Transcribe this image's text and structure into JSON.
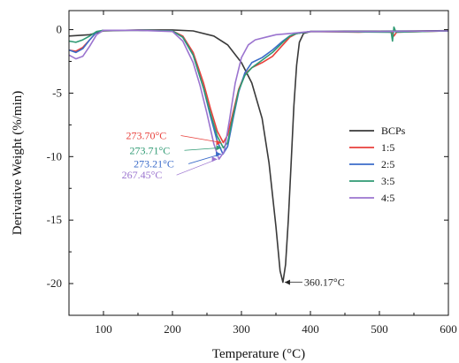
{
  "chart_data": {
    "type": "line",
    "title": "",
    "xlabel": "Temperature (°C)",
    "ylabel": "Derivative Weight (%/min)",
    "xlim": [
      50,
      600
    ],
    "ylim": [
      -22.5,
      1.5
    ],
    "xticks": [
      100,
      200,
      300,
      400,
      500,
      600
    ],
    "yticks": [
      0,
      -5,
      -10,
      -15,
      -20
    ],
    "grid": false,
    "legend_position": "right",
    "series": [
      {
        "name": "BCPs",
        "color": "#3a3a3a",
        "points": [
          [
            50,
            -0.5
          ],
          [
            80,
            -0.4
          ],
          [
            100,
            -0.1
          ],
          [
            150,
            -0.02
          ],
          [
            200,
            -0.02
          ],
          [
            230,
            -0.1
          ],
          [
            260,
            -0.5
          ],
          [
            280,
            -1.2
          ],
          [
            300,
            -2.6
          ],
          [
            315,
            -4.2
          ],
          [
            330,
            -7.0
          ],
          [
            340,
            -10.5
          ],
          [
            350,
            -15.5
          ],
          [
            356,
            -19.0
          ],
          [
            360.17,
            -19.9
          ],
          [
            364,
            -18.5
          ],
          [
            368,
            -15.0
          ],
          [
            372,
            -10.5
          ],
          [
            376,
            -6.0
          ],
          [
            380,
            -2.8
          ],
          [
            384,
            -1.0
          ],
          [
            390,
            -0.3
          ],
          [
            400,
            -0.15
          ],
          [
            450,
            -0.12
          ],
          [
            500,
            -0.12
          ],
          [
            550,
            -0.1
          ],
          [
            600,
            -0.08
          ]
        ]
      },
      {
        "name": "1:5",
        "color": "#e8413c",
        "points": [
          [
            50,
            -1.6
          ],
          [
            60,
            -1.7
          ],
          [
            70,
            -1.4
          ],
          [
            80,
            -0.8
          ],
          [
            90,
            -0.2
          ],
          [
            100,
            -0.05
          ],
          [
            150,
            -0.05
          ],
          [
            200,
            -0.1
          ],
          [
            215,
            -0.5
          ],
          [
            230,
            -1.8
          ],
          [
            245,
            -4.2
          ],
          [
            255,
            -6.2
          ],
          [
            265,
            -8.0
          ],
          [
            273.7,
            -8.9
          ],
          [
            280,
            -8.3
          ],
          [
            288,
            -6.5
          ],
          [
            296,
            -4.7
          ],
          [
            305,
            -3.5
          ],
          [
            315,
            -3.0
          ],
          [
            330,
            -2.6
          ],
          [
            345,
            -2.1
          ],
          [
            360,
            -1.2
          ],
          [
            370,
            -0.6
          ],
          [
            380,
            -0.3
          ],
          [
            400,
            -0.15
          ],
          [
            470,
            -0.2
          ],
          [
            500,
            -0.15
          ],
          [
            518,
            -0.2
          ],
          [
            521,
            -0.5
          ],
          [
            525,
            -0.2
          ],
          [
            600,
            -0.1
          ]
        ]
      },
      {
        "name": "2:5",
        "color": "#3b6cc9",
        "points": [
          [
            50,
            -1.6
          ],
          [
            60,
            -1.8
          ],
          [
            70,
            -1.5
          ],
          [
            80,
            -0.8
          ],
          [
            90,
            -0.2
          ],
          [
            100,
            -0.05
          ],
          [
            150,
            -0.05
          ],
          [
            200,
            -0.1
          ],
          [
            215,
            -0.6
          ],
          [
            230,
            -2.0
          ],
          [
            245,
            -4.6
          ],
          [
            255,
            -6.8
          ],
          [
            265,
            -8.8
          ],
          [
            273.21,
            -9.8
          ],
          [
            280,
            -9.2
          ],
          [
            288,
            -7.0
          ],
          [
            296,
            -4.9
          ],
          [
            305,
            -3.4
          ],
          [
            315,
            -2.6
          ],
          [
            330,
            -2.2
          ],
          [
            345,
            -1.6
          ],
          [
            360,
            -0.9
          ],
          [
            370,
            -0.5
          ],
          [
            380,
            -0.3
          ],
          [
            400,
            -0.15
          ],
          [
            500,
            -0.15
          ],
          [
            600,
            -0.1
          ]
        ]
      },
      {
        "name": "3:5",
        "color": "#2f9a73",
        "points": [
          [
            50,
            -0.9
          ],
          [
            60,
            -1.0
          ],
          [
            70,
            -0.8
          ],
          [
            80,
            -0.5
          ],
          [
            90,
            -0.15
          ],
          [
            100,
            -0.05
          ],
          [
            150,
            -0.05
          ],
          [
            200,
            -0.1
          ],
          [
            215,
            -0.6
          ],
          [
            230,
            -2.0
          ],
          [
            245,
            -4.6
          ],
          [
            255,
            -6.6
          ],
          [
            265,
            -8.4
          ],
          [
            273.71,
            -9.3
          ],
          [
            280,
            -8.9
          ],
          [
            288,
            -6.8
          ],
          [
            296,
            -4.8
          ],
          [
            305,
            -3.6
          ],
          [
            315,
            -3.0
          ],
          [
            330,
            -2.4
          ],
          [
            345,
            -1.8
          ],
          [
            360,
            -1.0
          ],
          [
            370,
            -0.5
          ],
          [
            380,
            -0.3
          ],
          [
            400,
            -0.15
          ],
          [
            510,
            -0.2
          ],
          [
            517,
            -0.2
          ],
          [
            519,
            -0.9
          ],
          [
            521,
            0.2
          ],
          [
            524,
            -0.2
          ],
          [
            600,
            -0.1
          ]
        ]
      },
      {
        "name": "4:5",
        "color": "#9b74cf",
        "points": [
          [
            50,
            -2.0
          ],
          [
            60,
            -2.3
          ],
          [
            70,
            -2.1
          ],
          [
            80,
            -1.3
          ],
          [
            90,
            -0.4
          ],
          [
            100,
            -0.05
          ],
          [
            150,
            -0.05
          ],
          [
            200,
            -0.15
          ],
          [
            215,
            -0.9
          ],
          [
            230,
            -2.6
          ],
          [
            240,
            -4.4
          ],
          [
            250,
            -6.6
          ],
          [
            260,
            -9.0
          ],
          [
            267.45,
            -10.2
          ],
          [
            275,
            -9.6
          ],
          [
            283,
            -7.0
          ],
          [
            291,
            -4.2
          ],
          [
            300,
            -2.2
          ],
          [
            310,
            -1.2
          ],
          [
            320,
            -0.8
          ],
          [
            335,
            -0.6
          ],
          [
            350,
            -0.4
          ],
          [
            370,
            -0.3
          ],
          [
            400,
            -0.15
          ],
          [
            500,
            -0.15
          ],
          [
            600,
            -0.1
          ]
        ]
      }
    ],
    "annotations": [
      {
        "text": "273.70°C",
        "color": "#e8413c",
        "x": 273.7,
        "y": -8.9
      },
      {
        "text": "273.71°C",
        "color": "#2f9a73",
        "x": 273.71,
        "y": -9.3
      },
      {
        "text": "273.21°C",
        "color": "#3b6cc9",
        "x": 273.21,
        "y": -9.8
      },
      {
        "text": "267.45°C",
        "color": "#9b74cf",
        "x": 267.45,
        "y": -10.2
      },
      {
        "text": "360.17°C",
        "color": "#222222",
        "x": 360.17,
        "y": -19.9
      }
    ]
  }
}
